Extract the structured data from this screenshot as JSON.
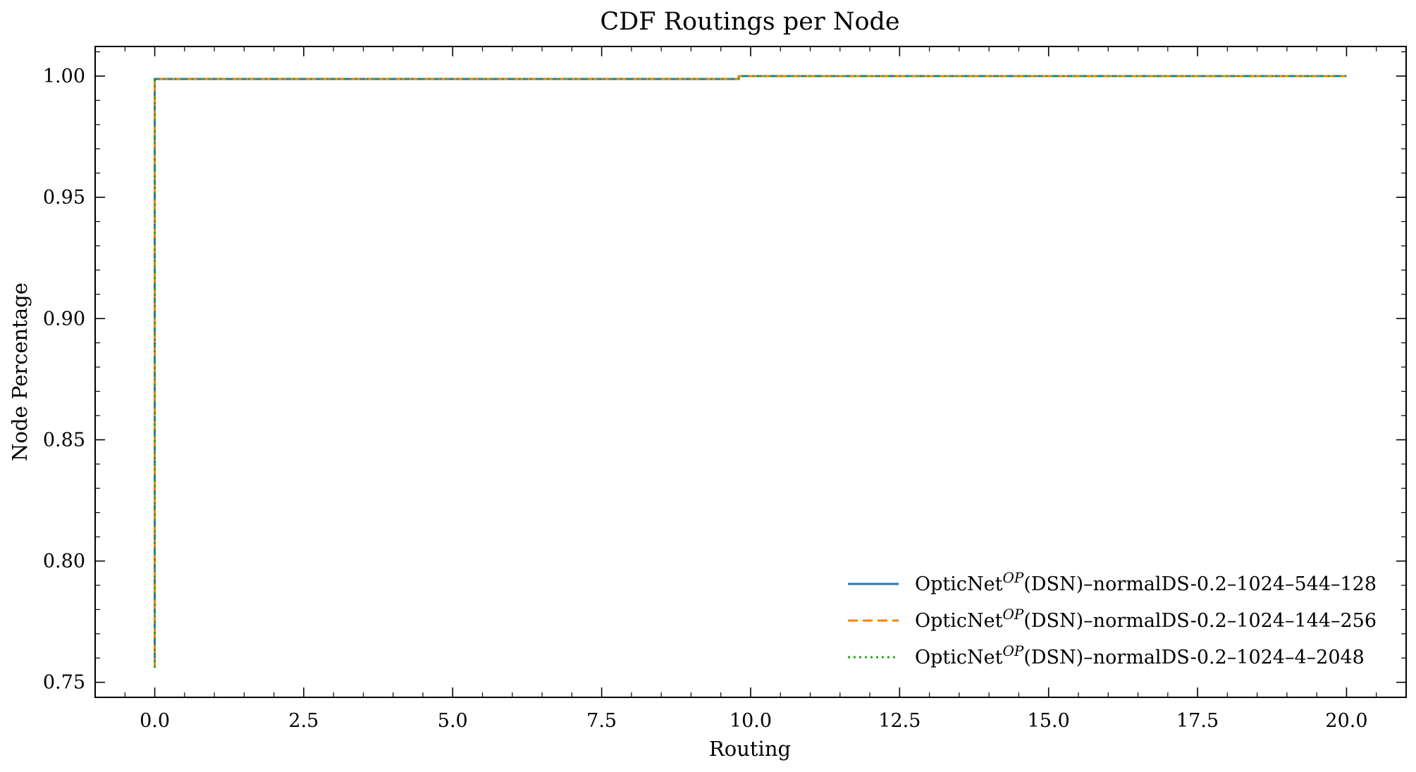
{
  "chart_data": {
    "type": "line",
    "title": "CDF Routings per Node",
    "xlabel": "Routing",
    "ylabel": "Node Percentage",
    "xlim": [
      -1.0,
      21.0
    ],
    "ylim": [
      0.7438,
      1.0122
    ],
    "xticks": [
      0.0,
      2.5,
      5.0,
      7.5,
      10.0,
      12.5,
      15.0,
      17.5,
      20.0
    ],
    "xtick_labels": [
      "0.0",
      "2.5",
      "5.0",
      "7.5",
      "10.0",
      "12.5",
      "15.0",
      "17.5",
      "20.0"
    ],
    "yticks": [
      0.75,
      0.8,
      0.85,
      0.9,
      0.95,
      1.0
    ],
    "ytick_labels": [
      "0.75",
      "0.80",
      "0.85",
      "0.90",
      "0.95",
      "1.00"
    ],
    "grid": false,
    "legend_position": "lower-right",
    "series": [
      {
        "name_main": "OpticNet",
        "name_sup": "OP",
        "name_rest": "(DSN)–normalDS-0.2–1024–544–128",
        "color": "#1f77b4",
        "style": "solid",
        "x": [
          0.0,
          0.0,
          9.8,
          9.8,
          20.0
        ],
        "y": [
          0.756,
          0.9988,
          0.9988,
          1.0,
          1.0
        ]
      },
      {
        "name_main": "OpticNet",
        "name_sup": "OP",
        "name_rest": "(DSN)–normalDS-0.2–1024–144–256",
        "color": "#ff7f0e",
        "style": "dashed",
        "x": [
          0.0,
          0.0,
          9.8,
          9.8,
          20.0
        ],
        "y": [
          0.756,
          0.9988,
          0.9988,
          1.0,
          1.0
        ]
      },
      {
        "name_main": "OpticNet",
        "name_sup": "OP",
        "name_rest": "(DSN)–normalDS-0.2–1024–4–2048",
        "color": "#2ca02c",
        "style": "dotted",
        "x": [
          0.0,
          0.0,
          9.8,
          9.8,
          20.0
        ],
        "y": [
          0.756,
          0.9988,
          0.9988,
          1.0,
          1.0
        ]
      }
    ]
  }
}
